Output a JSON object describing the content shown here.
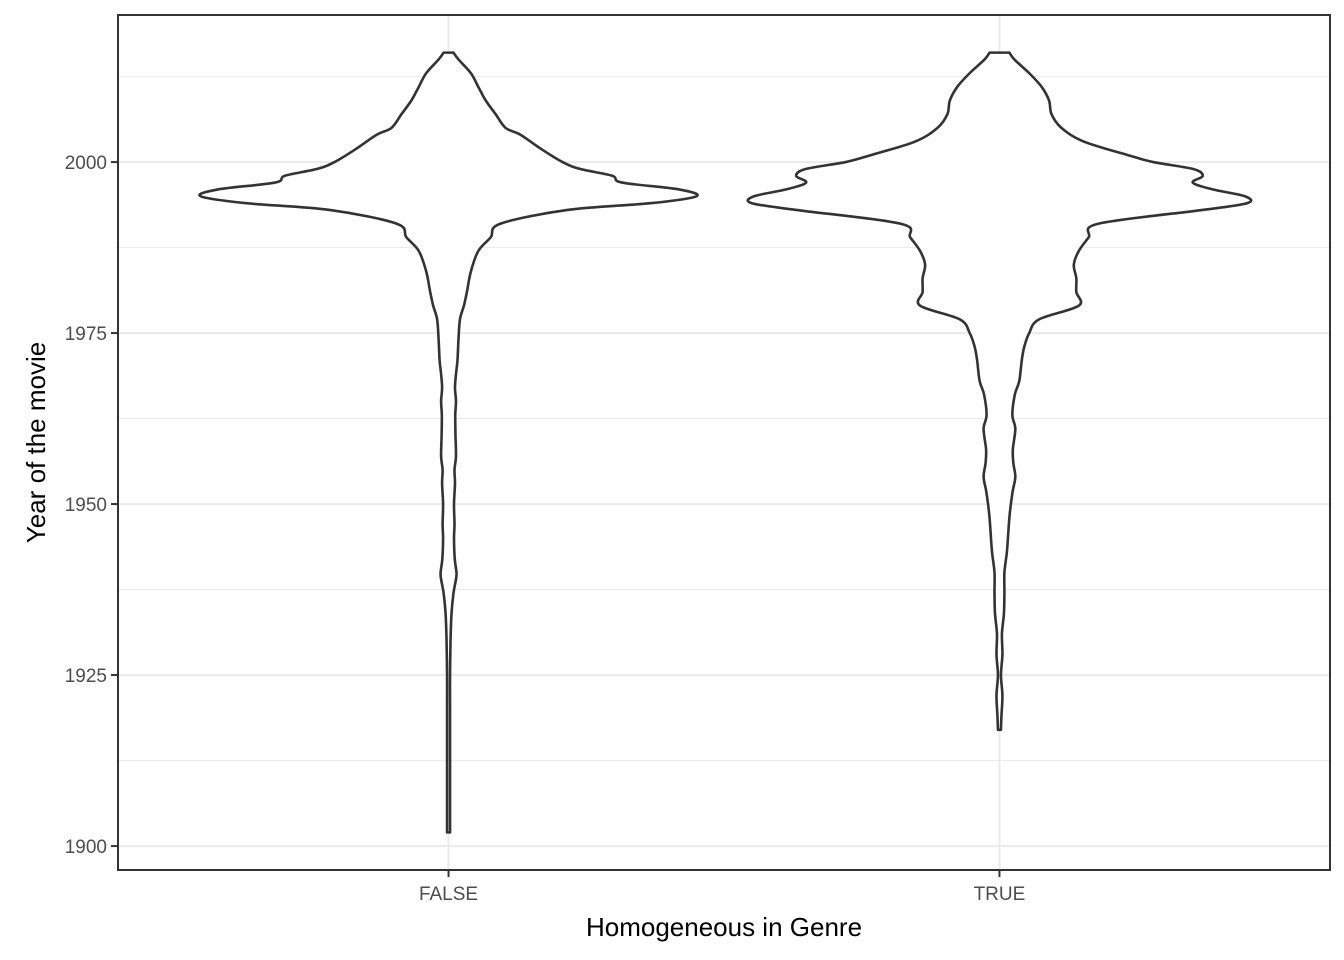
{
  "chart_data": {
    "type": "violin",
    "xlabel": "Homogeneous in Genre",
    "ylabel": "Year of the movie",
    "categories": [
      "FALSE",
      "TRUE"
    ],
    "ylim": [
      1896.5,
      2021.5
    ],
    "yticks": [
      1900,
      1925,
      1950,
      1975,
      2000
    ],
    "grid": true,
    "colors": {
      "outline": "#333333",
      "fill": "#ffffff",
      "grid": "#ebebeb",
      "tick_label": "#4d4d4d"
    },
    "series": [
      {
        "category": "FALSE",
        "ymin": 1902,
        "ymax": 2016,
        "density_profile": [
          [
            1902,
            0.002
          ],
          [
            1910,
            0.003
          ],
          [
            1920,
            0.004
          ],
          [
            1925,
            0.006
          ],
          [
            1930,
            0.008
          ],
          [
            1934,
            0.012
          ],
          [
            1937,
            0.02
          ],
          [
            1939,
            0.03
          ],
          [
            1940,
            0.032
          ],
          [
            1942,
            0.025
          ],
          [
            1945,
            0.022
          ],
          [
            1947,
            0.024
          ],
          [
            1950,
            0.022
          ],
          [
            1953,
            0.026
          ],
          [
            1955,
            0.024
          ],
          [
            1957,
            0.03
          ],
          [
            1960,
            0.028
          ],
          [
            1963,
            0.027
          ],
          [
            1965,
            0.03
          ],
          [
            1967,
            0.026
          ],
          [
            1969,
            0.03
          ],
          [
            1971,
            0.036
          ],
          [
            1974,
            0.04
          ],
          [
            1977,
            0.046
          ],
          [
            1979,
            0.062
          ],
          [
            1981,
            0.074
          ],
          [
            1984,
            0.09
          ],
          [
            1987,
            0.12
          ],
          [
            1989,
            0.17
          ],
          [
            1991,
            0.21
          ],
          [
            1993,
            0.48
          ],
          [
            1994,
            0.82
          ],
          [
            1995,
            1.0
          ],
          [
            1996,
            0.93
          ],
          [
            1997,
            0.7
          ],
          [
            1998,
            0.66
          ],
          [
            1999,
            0.53
          ],
          [
            2000,
            0.46
          ],
          [
            2002,
            0.37
          ],
          [
            2004,
            0.29
          ],
          [
            2005,
            0.23
          ],
          [
            2007,
            0.19
          ],
          [
            2009,
            0.15
          ],
          [
            2011,
            0.12
          ],
          [
            2013,
            0.09
          ],
          [
            2015,
            0.04
          ],
          [
            2016,
            0.02
          ]
        ]
      },
      {
        "category": "TRUE",
        "ymin": 1917,
        "ymax": 2016,
        "density_profile": [
          [
            1917,
            0.002
          ],
          [
            1919,
            0.008
          ],
          [
            1922,
            0.012
          ],
          [
            1925,
            0.006
          ],
          [
            1928,
            0.012
          ],
          [
            1931,
            0.01
          ],
          [
            1934,
            0.018
          ],
          [
            1937,
            0.02
          ],
          [
            1940,
            0.02
          ],
          [
            1943,
            0.03
          ],
          [
            1946,
            0.036
          ],
          [
            1948,
            0.04
          ],
          [
            1950,
            0.046
          ],
          [
            1952,
            0.054
          ],
          [
            1954,
            0.064
          ],
          [
            1956,
            0.056
          ],
          [
            1958,
            0.054
          ],
          [
            1961,
            0.064
          ],
          [
            1963,
            0.052
          ],
          [
            1966,
            0.062
          ],
          [
            1968,
            0.08
          ],
          [
            1971,
            0.09
          ],
          [
            1973,
            0.1
          ],
          [
            1975,
            0.12
          ],
          [
            1977,
            0.16
          ],
          [
            1979,
            0.32
          ],
          [
            1981,
            0.31
          ],
          [
            1983,
            0.31
          ],
          [
            1985,
            0.3
          ],
          [
            1987,
            0.32
          ],
          [
            1989,
            0.36
          ],
          [
            1991,
            0.4
          ],
          [
            1993,
            0.82
          ],
          [
            1994,
            1.0
          ],
          [
            1995,
            0.99
          ],
          [
            1996,
            0.86
          ],
          [
            1997,
            0.78
          ],
          [
            1998,
            0.82
          ],
          [
            1999,
            0.78
          ],
          [
            2000,
            0.62
          ],
          [
            2001,
            0.52
          ],
          [
            2003,
            0.34
          ],
          [
            2005,
            0.25
          ],
          [
            2007,
            0.21
          ],
          [
            2009,
            0.2
          ],
          [
            2011,
            0.17
          ],
          [
            2013,
            0.12
          ],
          [
            2015,
            0.06
          ],
          [
            2016,
            0.04
          ]
        ]
      }
    ]
  }
}
